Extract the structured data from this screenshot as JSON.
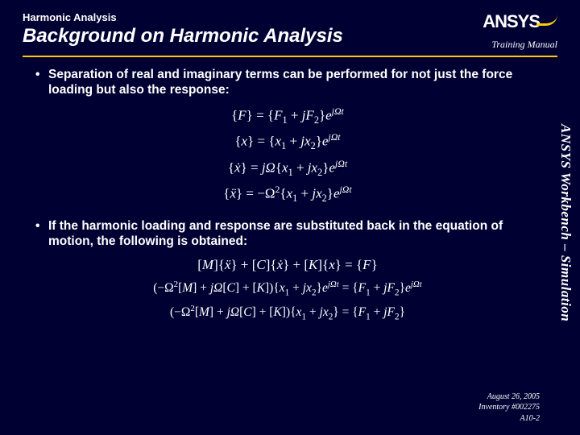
{
  "theme": {
    "background": "#000033",
    "text": "#ffffff",
    "accent": "#ffcc00"
  },
  "header": {
    "kicker": "Harmonic Analysis",
    "title": "Background on Harmonic Analysis",
    "subtitle": "Training Manual",
    "logo_text": "ANSYS"
  },
  "sidebar": {
    "label": "ANSYS Workbench – Simulation"
  },
  "bullets": [
    "Separation of real and imaginary terms can be performed for not just the force loading but also the response:",
    "If the harmonic loading and response are substituted back in the equation of motion, the following is obtained:"
  ],
  "equations_block1": [
    "{F} = {F₁ + jF₂} e^{jΩt}",
    "{x} = {x₁ + jx₂} e^{jΩt}",
    "{ẋ} = jΩ {x₁ + jx₂} e^{jΩt}",
    "{ẍ} = −Ω² {x₁ + jx₂} e^{jΩt}"
  ],
  "equations_block2": [
    "[M]{ẍ} + [C]{ẋ} + [K]{x} = {F}",
    "(−Ω²[M] + jΩ[C] + [K]) {x₁ + jx₂} e^{jΩt} = {F₁ + jF₂} e^{jΩt}",
    "(−Ω²[M] + jΩ[C] + [K]) {x₁ + jx₂} = {F₁ + jF₂}"
  ],
  "footer": {
    "date": "August 26, 2005",
    "inventory": "Inventory #002275",
    "page": "A10-2"
  }
}
